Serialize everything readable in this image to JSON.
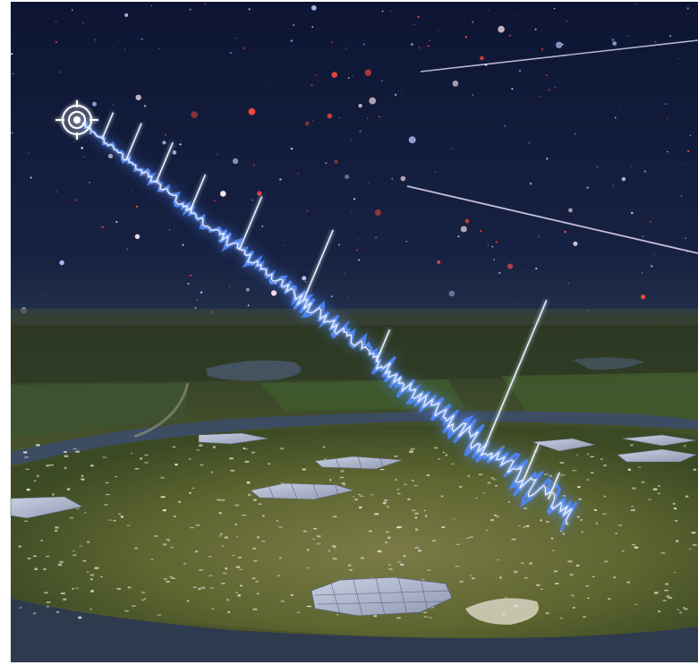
{
  "scene": {
    "subject": "radio-telescope-array-under-starry-sky",
    "colors": {
      "sky_top": "#0d1533",
      "sky_bottom": "#1e2a44",
      "star_red": "#ff4a3d",
      "star_white": "#ffe9ef",
      "signal_blue": "#3f78ff",
      "signal_core": "#e6f0ff",
      "field_dark": "#2f3b22",
      "field_light": "#6e7040",
      "water": "#3f4f66",
      "panel": "#a9b2c6",
      "frame": "#ffffff"
    },
    "elements": {
      "source_marker_icon": "crosshair-target-icon",
      "signal": "radio-pulse-waveform",
      "meteor_trails": 2,
      "panel_clusters": 8
    }
  }
}
